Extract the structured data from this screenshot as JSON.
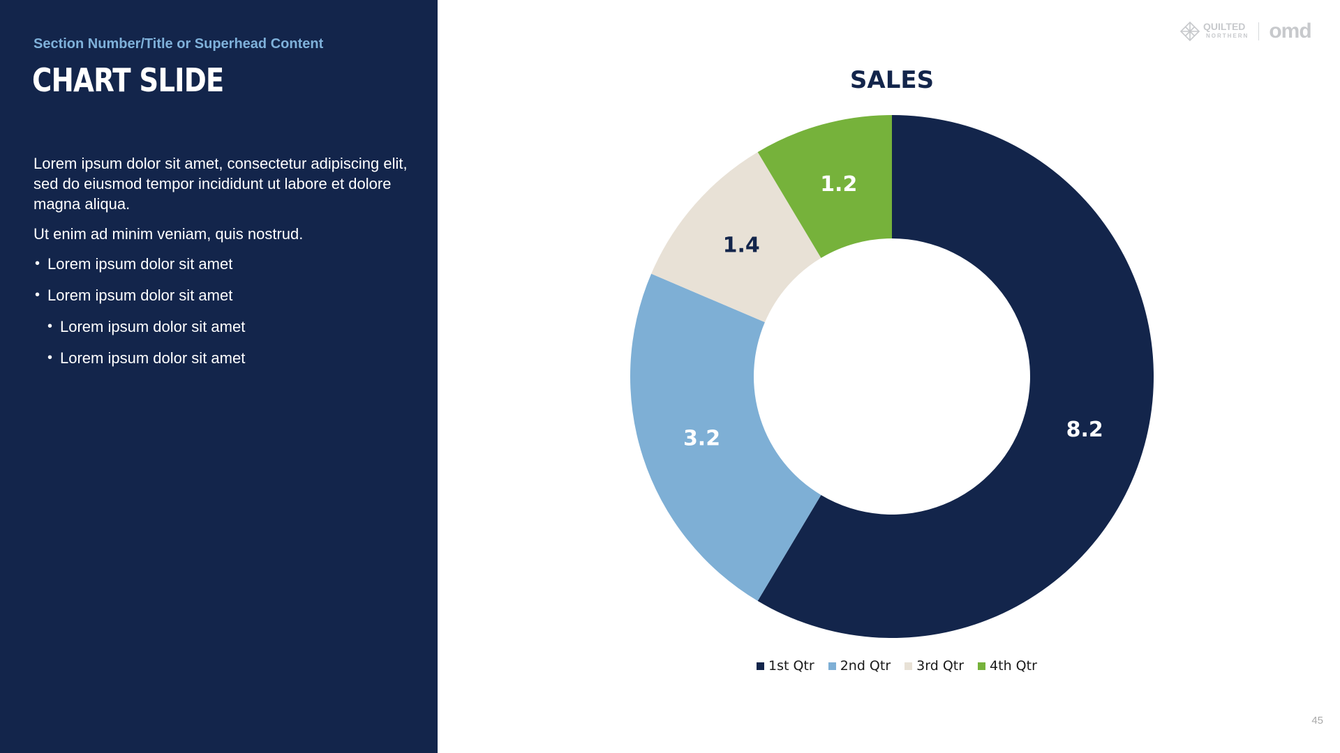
{
  "slide": {
    "superhead": "Section Number/Title or Superhead Content",
    "title": "CHART SLIDE",
    "paragraph1": "Lorem ipsum dolor sit amet, consectetur adipiscing elit, sed do eiusmod tempor incididunt ut labore et dolore magna aliqua.",
    "paragraph2": "Ut enim ad minim veniam, quis nostrud.",
    "bullets": [
      "Lorem ipsum dolor sit amet",
      "Lorem ipsum dolor sit amet",
      "Lorem ipsum dolor sit amet",
      "Lorem ipsum dolor sit amet"
    ],
    "page_number": "45"
  },
  "brand": {
    "logo_text_main": "QUILTED",
    "logo_text_sub": "NORTHERN",
    "logo_omd": "omd",
    "logo_icon": "quilt-diamond-icon"
  },
  "colors": {
    "panel_bg": "#13254b",
    "superhead": "#7fb1da",
    "q1": "#13254b",
    "q2": "#7eafd5",
    "q3": "#e8e1d6",
    "q4": "#76b23b"
  },
  "chart_data": {
    "type": "pie",
    "subtype": "donut",
    "title": "SALES",
    "categories": [
      "1st Qtr",
      "2nd Qtr",
      "3rd Qtr",
      "4th Qtr"
    ],
    "values": [
      8.2,
      3.2,
      1.4,
      1.2
    ],
    "data_labels": [
      "8.2",
      "3.2",
      "1.4",
      "1.2"
    ],
    "legend_position": "bottom"
  }
}
